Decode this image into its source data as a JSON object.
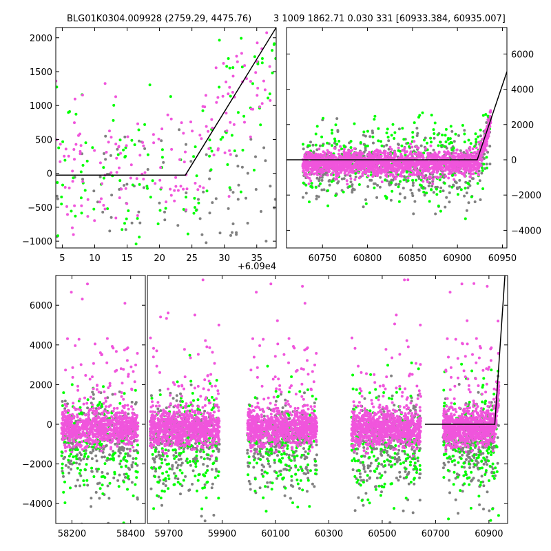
{
  "figure": {
    "title_left": "BLG01K0304.009928 (2759.29, 4475.76)",
    "title_right": "3 1009 1862.71 0.030 331 [60933.384, 60935.007]"
  },
  "colors": {
    "magenta": "#f055dc",
    "green": "#00ff00",
    "gray": "#808080",
    "model_line": "#000000"
  },
  "chart_data": [
    {
      "type": "scatter",
      "panel": "top-left zoom",
      "xlim": [
        4,
        38
      ],
      "ylim": [
        -1100,
        2150
      ],
      "x_offset_label": "+6.09e4",
      "xticks": [
        5,
        10,
        15,
        20,
        25,
        30,
        35
      ],
      "yticks": [
        -1000,
        -500,
        0,
        500,
        1000,
        1500,
        2000
      ],
      "grid": false,
      "model": {
        "x": [
          4,
          24,
          38
        ],
        "y": [
          -25,
          -25,
          2150
        ]
      },
      "series": [
        {
          "color": "magenta",
          "point_cloud": {
            "x_range": [
              4,
              38
            ],
            "baseline_y": 0,
            "spread": 500,
            "follows_model_after": 24
          }
        },
        {
          "color": "green",
          "point_cloud": {
            "x_range": [
              4,
              38
            ],
            "baseline_y": 0,
            "spread": 600,
            "follows_model_after": 24
          }
        },
        {
          "color": "gray",
          "point_cloud": {
            "x_range": [
              4,
              38
            ],
            "baseline_y": -200,
            "spread": 450
          }
        }
      ]
    },
    {
      "type": "scatter",
      "panel": "top-right season",
      "xlim": [
        60710,
        60955
      ],
      "ylim": [
        -5000,
        7500
      ],
      "xticks": [
        60750,
        60800,
        60850,
        60900,
        60950
      ],
      "yticks": [
        -4000,
        -2000,
        0,
        2000,
        4000,
        6000
      ],
      "y_axis_side": "right",
      "grid": false,
      "model": {
        "x": [
          60710,
          60922,
          60955
        ],
        "y": [
          0,
          0,
          5000
        ]
      },
      "series": [
        {
          "color": "magenta",
          "point_cloud": {
            "x_range": [
              60728,
              60937
            ],
            "baseline_y": -200,
            "spread": 350
          }
        },
        {
          "color": "green",
          "point_cloud": {
            "x_range": [
              60728,
              60937
            ],
            "baseline_y": -200,
            "spread": 1200
          }
        },
        {
          "color": "gray",
          "point_cloud": {
            "x_range": [
              60728,
              60937
            ],
            "baseline_y": -500,
            "spread": 900
          }
        }
      ]
    },
    {
      "type": "scatter",
      "panel": "bottom all seasons",
      "ylim": [
        -5000,
        7500
      ],
      "yticks": [
        -4000,
        -2000,
        0,
        2000,
        4000,
        6000
      ],
      "xticks": [
        58200,
        58400,
        59700,
        59900,
        60100,
        60300,
        60500,
        60700,
        60900
      ],
      "broken_axis": true,
      "grid": false,
      "segments": [
        {
          "xlim": [
            58145,
            58450
          ],
          "seasons": [
            [
              58165,
              58425
            ]
          ]
        },
        {
          "xlim": [
            59620,
            60970
          ],
          "seasons": [
            [
              59630,
              59890
            ],
            [
              59995,
              60255
            ],
            [
              60385,
              60645
            ],
            [
              60728,
              60937
            ]
          ]
        }
      ],
      "model": {
        "x": [
          60660,
          60922,
          60960
        ],
        "y": [
          0,
          0,
          7500
        ]
      },
      "series": [
        {
          "color": "magenta",
          "point_cloud": {
            "baseline_y": -200,
            "spread": 450
          }
        },
        {
          "color": "green",
          "point_cloud": {
            "baseline_y": -600,
            "spread": 1300
          }
        },
        {
          "color": "gray",
          "point_cloud": {
            "baseline_y": -700,
            "spread": 1000
          }
        }
      ]
    }
  ]
}
